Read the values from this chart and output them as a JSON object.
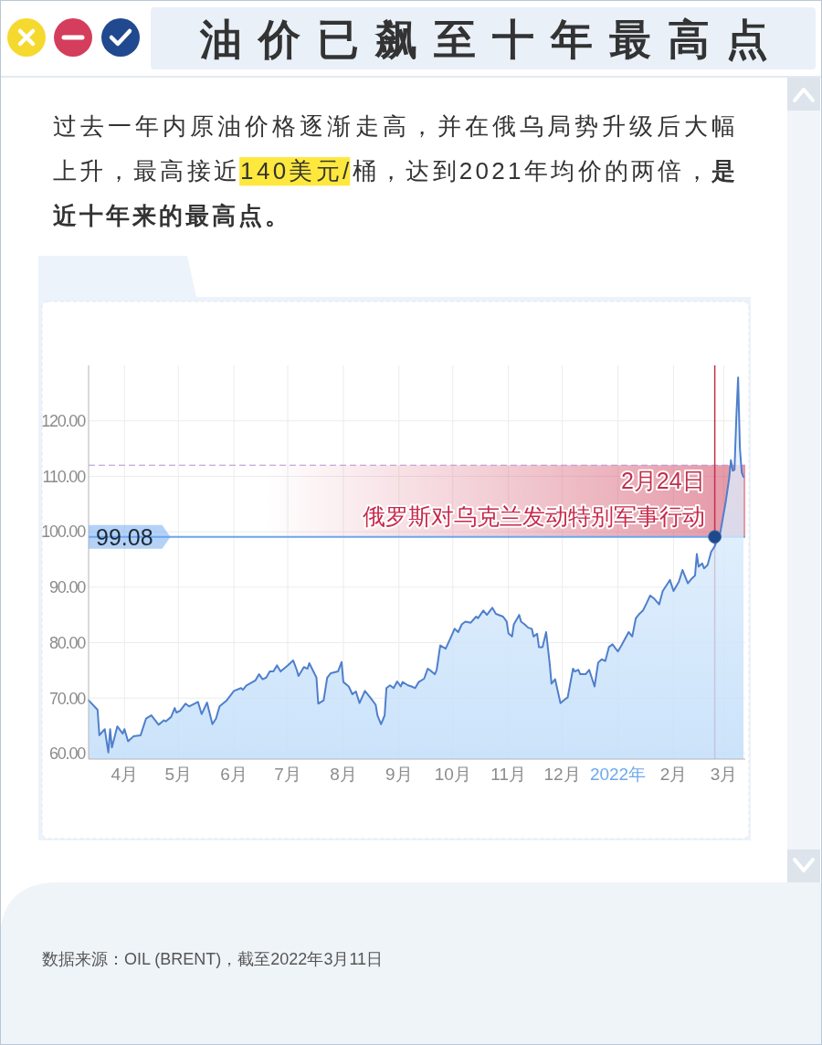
{
  "chart_data": {
    "type": "area",
    "title": "油价已飙至十年最高点",
    "subtitle": "过去一年内原油价格逐渐走高，并在俄乌局势升级后大幅上升，最高接近140美元/桶，达到2021年均价的两倍，是近十年来的最高点。",
    "xlim": [
      "2021-03-12",
      "2022-03-13"
    ],
    "xticks": [
      {
        "value": "2021-04-01",
        "label": "4月"
      },
      {
        "value": "2021-05-01",
        "label": "5月"
      },
      {
        "value": "2021-06-01",
        "label": "6月"
      },
      {
        "value": "2021-07-01",
        "label": "7月"
      },
      {
        "value": "2021-08-01",
        "label": "8月"
      },
      {
        "value": "2021-09-01",
        "label": "9月"
      },
      {
        "value": "2021-10-01",
        "label": "10月"
      },
      {
        "value": "2021-11-01",
        "label": "11月"
      },
      {
        "value": "2021-12-01",
        "label": "12月"
      },
      {
        "value": "2022-01-01",
        "label": "2022年"
      },
      {
        "value": "2022-02-01",
        "label": "2月"
      },
      {
        "value": "2022-03-01",
        "label": "3月"
      }
    ],
    "ylim": [
      59,
      130
    ],
    "yticks": [
      {
        "value": 60,
        "label": "60.00"
      },
      {
        "value": 70,
        "label": "70.00"
      },
      {
        "value": 80,
        "label": "80.00"
      },
      {
        "value": 90,
        "label": "90.00"
      },
      {
        "value": 100,
        "label": "100.00"
      },
      {
        "value": 110,
        "label": "110.00"
      },
      {
        "value": 120,
        "label": "120.00"
      }
    ],
    "grid": true,
    "series": [
      {
        "color": "#4f7fcc",
        "x": [
          "2021-03-12",
          "2021-03-17",
          "2021-03-18",
          "2021-03-21",
          "2021-03-23",
          "2021-03-24",
          "2021-03-25",
          "2021-03-28",
          "2021-03-31",
          "2021-04-01",
          "2021-04-03",
          "2021-04-06",
          "2021-04-10",
          "2021-04-13",
          "2021-04-16",
          "2021-04-20",
          "2021-04-23",
          "2021-04-24",
          "2021-04-27",
          "2021-04-29",
          "2021-04-30",
          "2021-05-02",
          "2021-05-05",
          "2021-05-07",
          "2021-05-12",
          "2021-05-14",
          "2021-05-17",
          "2021-05-20",
          "2021-05-22",
          "2021-05-24",
          "2021-05-28",
          "2021-06-01",
          "2021-06-05",
          "2021-06-06",
          "2021-06-08",
          "2021-06-13",
          "2021-06-15",
          "2021-06-17",
          "2021-06-19",
          "2021-06-21",
          "2021-06-23",
          "2021-06-25",
          "2021-06-27",
          "2021-07-01",
          "2021-07-04",
          "2021-07-06",
          "2021-07-07",
          "2021-07-10",
          "2021-07-12",
          "2021-07-13",
          "2021-07-17",
          "2021-07-18",
          "2021-07-21",
          "2021-07-23",
          "2021-07-25",
          "2021-07-29",
          "2021-07-31",
          "2021-08-01",
          "2021-08-04",
          "2021-08-06",
          "2021-08-08",
          "2021-08-10",
          "2021-08-13",
          "2021-08-16",
          "2021-08-19",
          "2021-08-20",
          "2021-08-22",
          "2021-08-24",
          "2021-08-25",
          "2021-08-27",
          "2021-08-29",
          "2021-08-31",
          "2021-09-02",
          "2021-09-03",
          "2021-09-06",
          "2021-09-08",
          "2021-09-10",
          "2021-09-12",
          "2021-09-15",
          "2021-09-17",
          "2021-09-18",
          "2021-09-21",
          "2021-09-22",
          "2021-09-24",
          "2021-09-27",
          "2021-09-29",
          "2021-10-02",
          "2021-10-04",
          "2021-10-06",
          "2021-10-08",
          "2021-10-11",
          "2021-10-14",
          "2021-10-15",
          "2021-10-18",
          "2021-10-20",
          "2021-10-23",
          "2021-10-25",
          "2021-10-29",
          "2021-10-31",
          "2021-11-01",
          "2021-11-03",
          "2021-11-04",
          "2021-11-07",
          "2021-11-08",
          "2021-11-10",
          "2021-11-12",
          "2021-11-14",
          "2021-11-15",
          "2021-11-17",
          "2021-11-18",
          "2021-11-20",
          "2021-11-22",
          "2021-11-24",
          "2021-11-25",
          "2021-11-27",
          "2021-11-30",
          "2021-12-03",
          "2021-12-04",
          "2021-12-07",
          "2021-12-08",
          "2021-12-10",
          "2021-12-11",
          "2021-12-14",
          "2021-12-16",
          "2021-12-19",
          "2021-12-21",
          "2021-12-23",
          "2021-12-25",
          "2021-12-27",
          "2021-12-29",
          "2022-01-01",
          "2022-01-03",
          "2022-01-07",
          "2022-01-09",
          "2022-01-11",
          "2022-01-13",
          "2022-01-15",
          "2022-01-17",
          "2022-01-19",
          "2022-01-21",
          "2022-01-24",
          "2022-01-26",
          "2022-01-30",
          "2022-02-01",
          "2022-02-04",
          "2022-02-06",
          "2022-02-09",
          "2022-02-11",
          "2022-02-13",
          "2022-02-14",
          "2022-02-15",
          "2022-02-17",
          "2022-02-18",
          "2022-02-20",
          "2022-02-22",
          "2022-02-23",
          "2022-02-24",
          "2022-02-27",
          "2022-03-02",
          "2022-03-04",
          "2022-03-05",
          "2022-03-06",
          "2022-03-07",
          "2022-03-08",
          "2022-03-09",
          "2022-03-10",
          "2022-03-11",
          "2022-03-12"
        ],
        "values": [
          69.6,
          67.9,
          63.3,
          64.4,
          60.2,
          64.4,
          61.1,
          64.9,
          63.6,
          64.4,
          62.2,
          63.1,
          63.3,
          66.3,
          66.9,
          65.2,
          66.0,
          65.8,
          66.6,
          68.2,
          67.4,
          67.7,
          69.0,
          68.5,
          69.3,
          67.1,
          69.2,
          65.3,
          66.3,
          68.5,
          69.6,
          71.3,
          71.8,
          71.5,
          72.3,
          73.2,
          74.3,
          73.4,
          73.7,
          74.8,
          74.8,
          75.9,
          74.8,
          75.9,
          76.8,
          75.1,
          74.0,
          75.6,
          75.3,
          76.3,
          73.7,
          69.0,
          69.6,
          73.7,
          74.5,
          74.8,
          76.5,
          72.9,
          72.1,
          70.7,
          71.2,
          69.1,
          71.3,
          70.1,
          68.8,
          66.9,
          65.3,
          66.9,
          71.8,
          72.3,
          71.8,
          73.0,
          72.1,
          72.9,
          72.3,
          72.1,
          71.8,
          72.9,
          73.5,
          75.3,
          75.1,
          74.3,
          75.1,
          79.5,
          78.9,
          80.3,
          82.5,
          81.9,
          83.3,
          83.8,
          83.6,
          84.7,
          84.4,
          85.8,
          85.0,
          86.3,
          85.2,
          84.7,
          83.8,
          81.7,
          81.1,
          83.3,
          85.0,
          83.8,
          83.3,
          82.7,
          82.5,
          81.1,
          81.6,
          79.2,
          79.2,
          81.9,
          76.2,
          72.6,
          73.4,
          69.1,
          69.9,
          70.1,
          75.3,
          74.8,
          75.1,
          74.3,
          74.3,
          75.1,
          72.1,
          76.4,
          77.0,
          76.7,
          79.2,
          79.7,
          78.4,
          79.5,
          81.9,
          81.1,
          84.4,
          85.2,
          85.8,
          87.1,
          88.5,
          88.0,
          86.9,
          89.3,
          91.3,
          89.3,
          91.0,
          93.1,
          90.7,
          91.5,
          92.1,
          96.0,
          93.7,
          94.3,
          93.4,
          94.0,
          96.4,
          96.9,
          97.4,
          99.7,
          105.2,
          109.6,
          112.9,
          111.0,
          111.2,
          120.5,
          127.8,
          115.1,
          110.7,
          109.9
        ]
      },
      {
        "type": "scatter",
        "color": "#1d4a8a",
        "marker": "circle",
        "x": [
          "2022-02-24"
        ],
        "values": [
          99.08
        ]
      }
    ],
    "ref_lines": [
      {
        "axis": "y",
        "value": 99.08,
        "label": "99.08",
        "color": "#6aa6ee"
      },
      {
        "axis": "y",
        "value": 112,
        "color": "#b78fd0",
        "line_style": "dashed"
      },
      {
        "axis": "x",
        "value": "2022-02-24",
        "label": "2月24日",
        "color": "#c0304c"
      }
    ],
    "bands": [
      {
        "axis": "y",
        "from": 99.08,
        "to": 112,
        "label": "俄罗斯对乌克兰发动特别军事行动",
        "color": "#d4566e"
      }
    ],
    "annotations": [
      "数据来源：OIL (BRENT)，截至2022年3月11日"
    ]
  }
}
